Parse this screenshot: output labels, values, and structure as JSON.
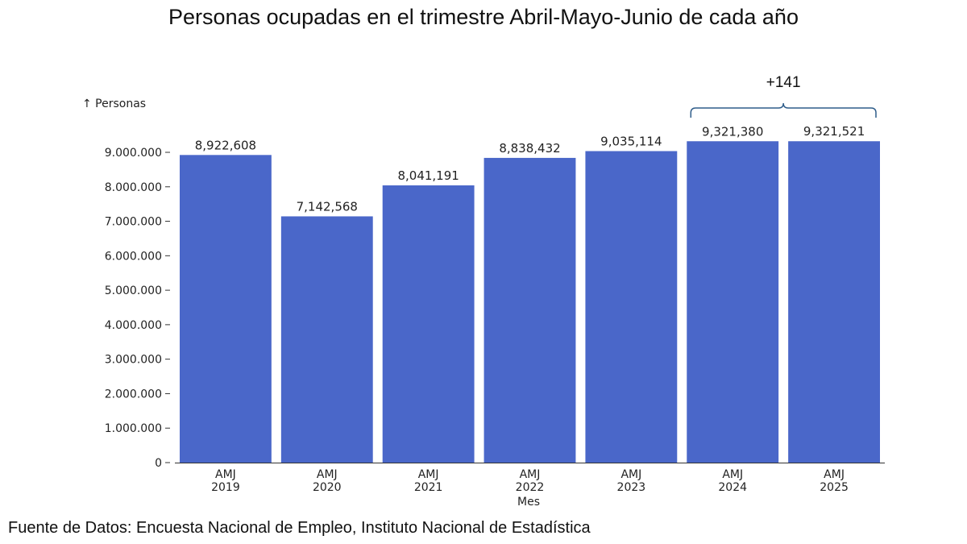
{
  "chart_data": {
    "type": "bar",
    "title": "Personas ocupadas en el trimestre Abril-Mayo-Junio de cada año",
    "categories": [
      "AMJ 2019",
      "AMJ 2020",
      "AMJ 2021",
      "AMJ 2022",
      "AMJ 2023",
      "AMJ 2024",
      "AMJ 2025"
    ],
    "category_lines": [
      [
        "AMJ",
        "2019"
      ],
      [
        "AMJ",
        "2020"
      ],
      [
        "AMJ",
        "2021"
      ],
      [
        "AMJ",
        "2022"
      ],
      [
        "AMJ",
        "2023"
      ],
      [
        "AMJ",
        "2024"
      ],
      [
        "AMJ",
        "2025"
      ]
    ],
    "values": [
      8922608,
      7142568,
      8041191,
      8838432,
      9035114,
      9321380,
      9321521
    ],
    "value_labels": [
      "8,922,608",
      "7,142,568",
      "8,041,191",
      "8,838,432",
      "9,035,114",
      "9,321,380",
      "9,321,521"
    ],
    "xlabel": "Mes",
    "ylabel": "↑ Personas",
    "ylim": [
      0,
      9000000
    ],
    "yticks": [
      0,
      1000000,
      2000000,
      3000000,
      4000000,
      5000000,
      6000000,
      7000000,
      8000000,
      9000000
    ],
    "ytick_labels": [
      "0",
      "1.000.000",
      "2.000.000",
      "3.000.000",
      "4.000.000",
      "5.000.000",
      "6.000.000",
      "7.000.000",
      "8.000.000",
      "9.000.000"
    ],
    "annotation": {
      "text": "+141",
      "from_category": "AMJ 2024",
      "to_category": "AMJ 2025"
    },
    "grid": false,
    "bar_color": "#4a67c9"
  },
  "source": "Fuente de Datos: Encuesta Nacional de Empleo, Instituto Nacional de Estadística"
}
